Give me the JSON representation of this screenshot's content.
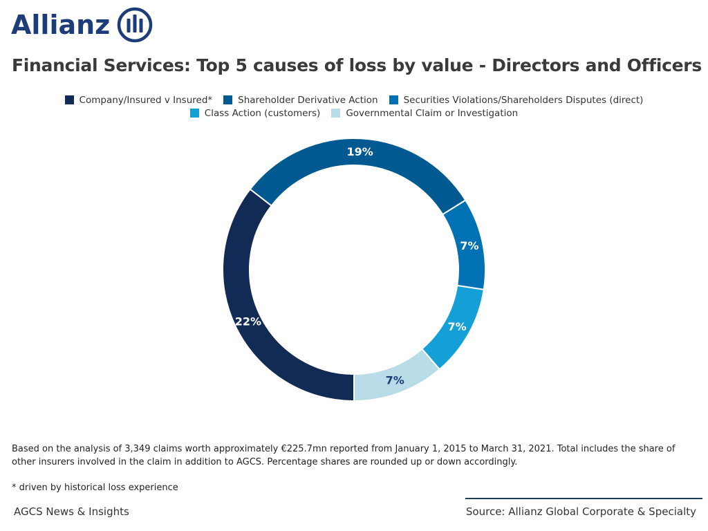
{
  "brand": {
    "name": "Allianz",
    "color": "#1c3d7a"
  },
  "title": "Financial Services: Top 5 causes of loss by value - Directors and Officers",
  "chart_data": {
    "type": "pie",
    "variant": "donut",
    "title": "Financial Services: Top 5 causes of loss by value - Directors and Officers",
    "legend_position": "top-center",
    "categories": [
      "Company/Insured v Insured*",
      "Shareholder Derivative Action",
      "Securities Violations/Shareholders Disputes (direct)",
      "Class Action (customers)",
      "Governmental Claim or Investigation"
    ],
    "values": [
      22,
      19,
      7,
      7,
      7
    ],
    "labels": [
      "22%",
      "19%",
      "7%",
      "7%",
      "7%"
    ],
    "colors": [
      "#122b55",
      "#005a91",
      "#0071b3",
      "#14a0d6",
      "#b8dce8"
    ],
    "label_colors": [
      "#ffffff",
      "#ffffff",
      "#ffffff",
      "#ffffff",
      "#1c3d7a"
    ],
    "start_category": "Governmental Claim or Investigation",
    "direction": "counterclockwise"
  },
  "note": "Based on the analysis of 3,349 claims worth approximately €225.7mn reported from January 1, 2015 to March 31, 2021. Total includes the share of other insurers involved in the claim in addition to AGCS. Percentage shares are rounded up or down accordingly.",
  "footnote": "* driven by historical loss experience",
  "footer": {
    "left": "AGCS News & Insights",
    "right": "Source: Allianz Global Corporate & Specialty"
  }
}
